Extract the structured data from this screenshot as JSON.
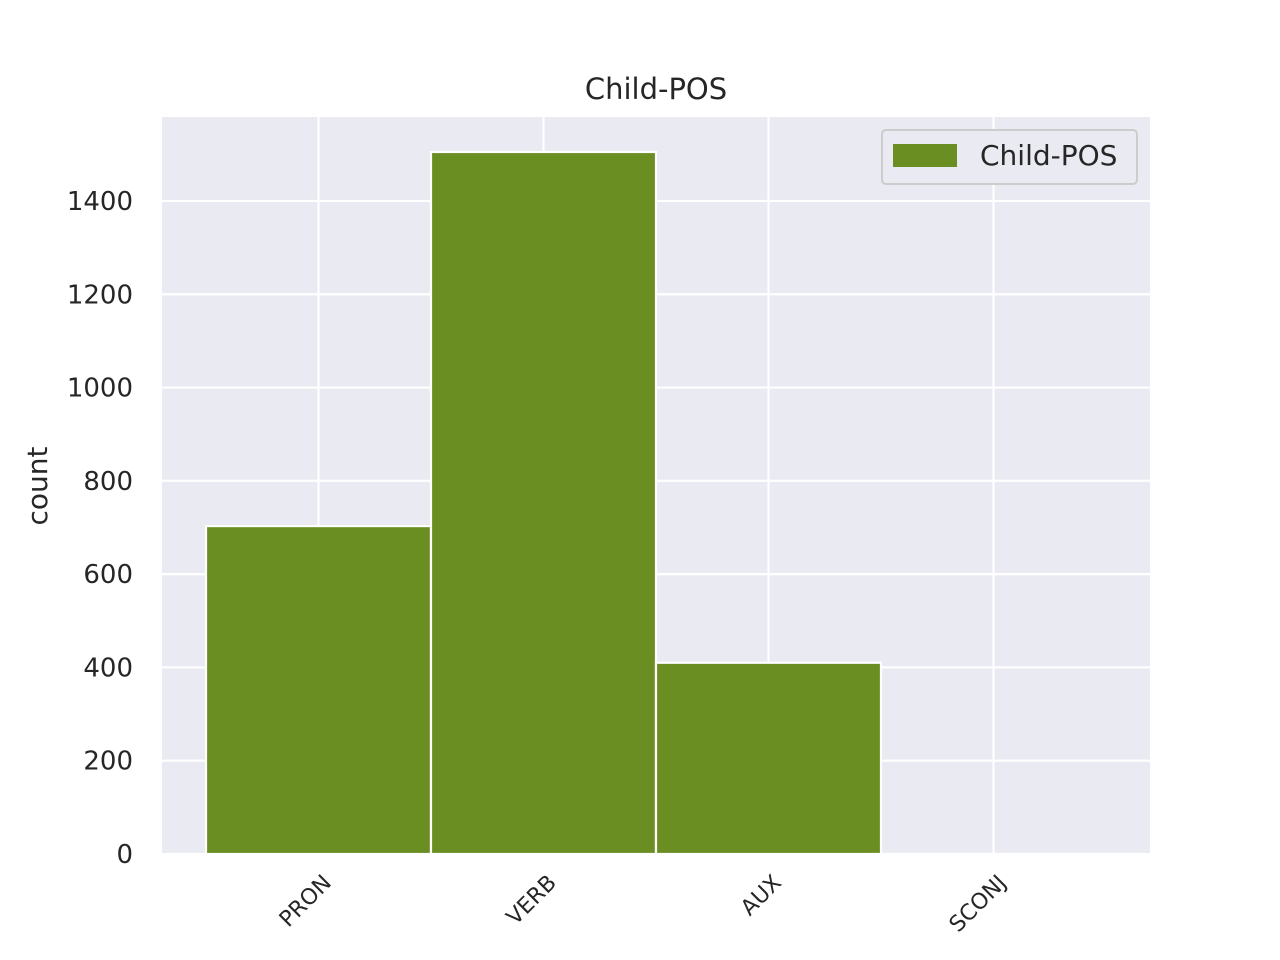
{
  "chart_data": {
    "type": "bar",
    "title": "Child-POS",
    "xlabel": "",
    "ylabel": "count",
    "categories": [
      "PRON",
      "VERB",
      "AUX",
      "SCONJ"
    ],
    "series": [
      {
        "name": "Child-POS",
        "values": [
          703,
          1505,
          410,
          0
        ]
      }
    ],
    "ylim": [
      0,
      1580
    ],
    "yticks": [
      0,
      200,
      400,
      600,
      800,
      1000,
      1200,
      1400
    ],
    "grid": true,
    "legend": "top-right",
    "colors": {
      "bar": "#6b8e23",
      "plot_background": "#eaeaf2",
      "grid": "#ffffff",
      "text": "#262626"
    }
  }
}
